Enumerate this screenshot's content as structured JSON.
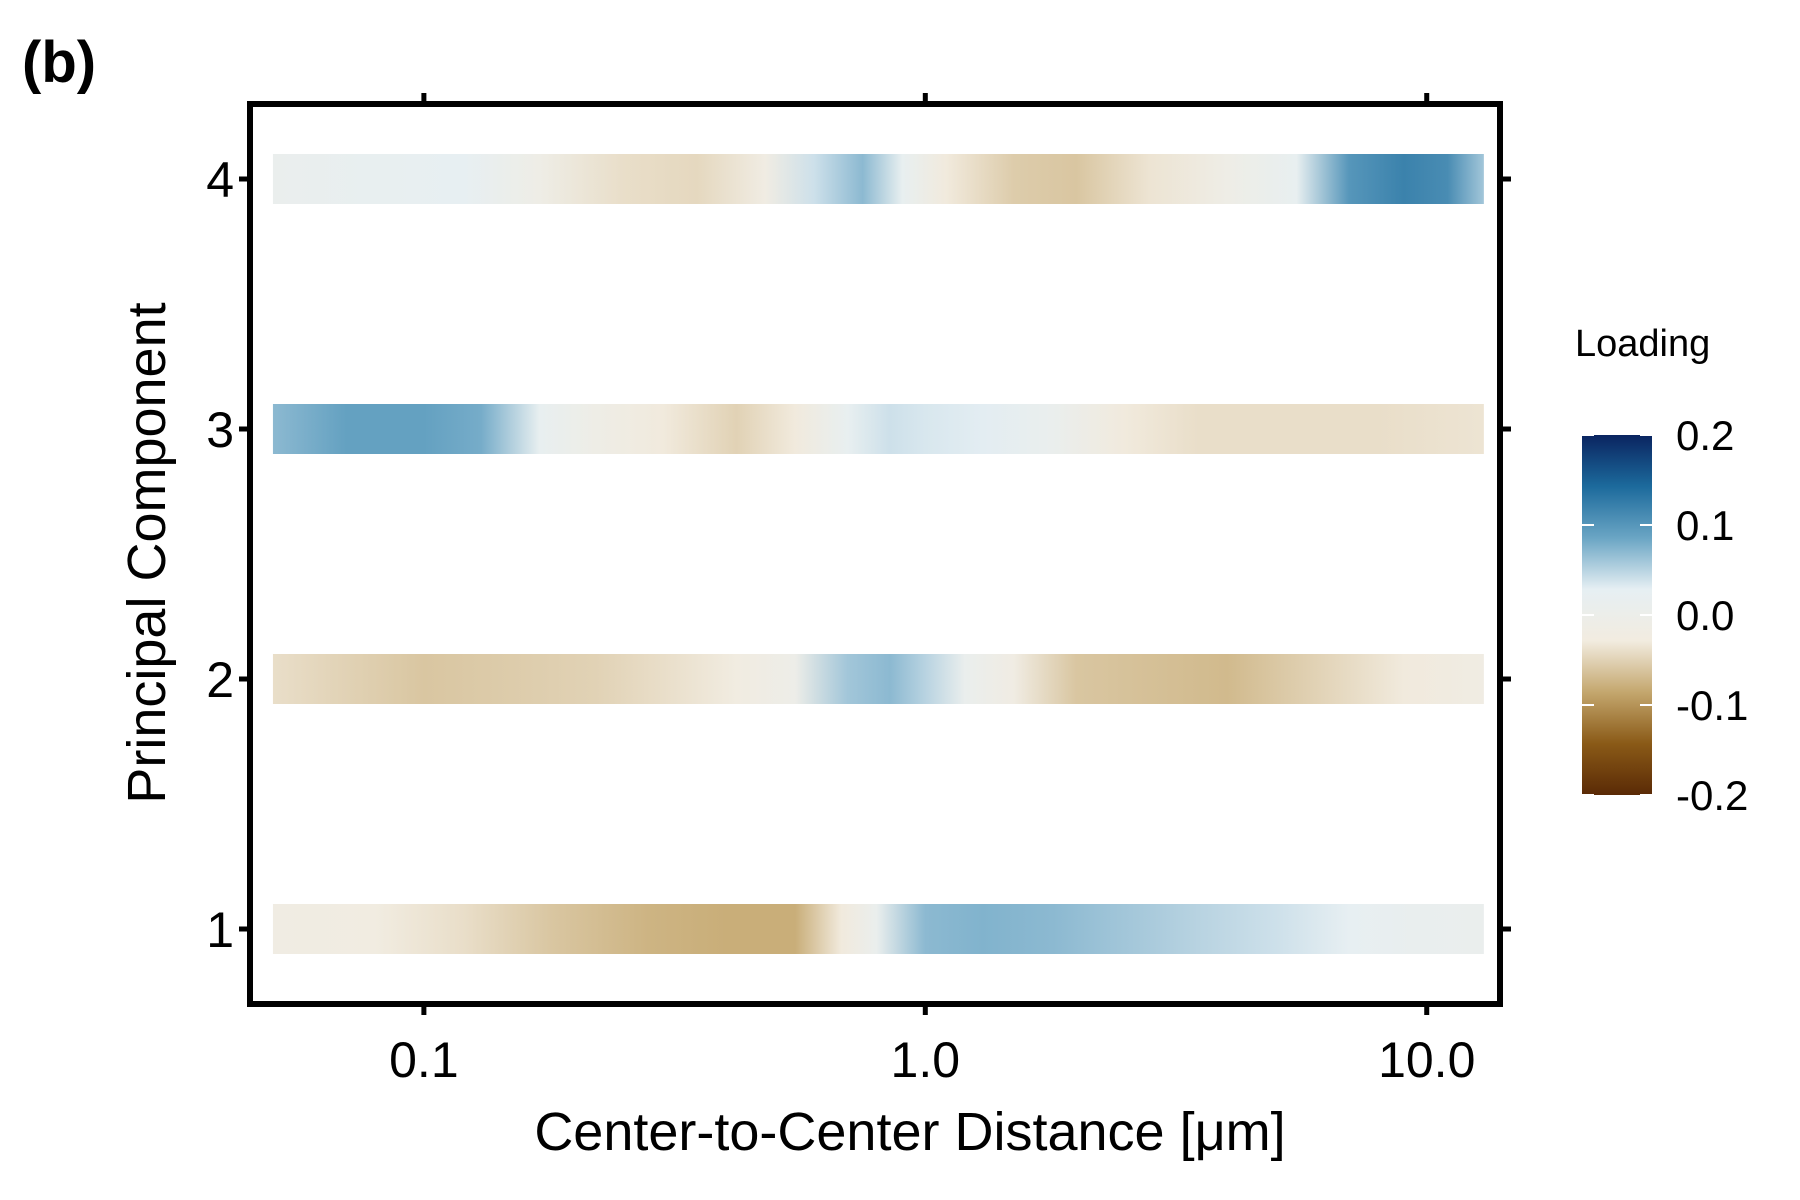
{
  "panel_label": "(b)",
  "chart_data": {
    "type": "heatmap",
    "xlabel": "Center-to-Center Distance [μm]",
    "ylabel": "Principal Component",
    "x_scale": "log10",
    "x_range": [
      0.045,
      14
    ],
    "x_ticks": [
      0.1,
      1.0,
      10.0
    ],
    "x_tick_labels": [
      "0.1",
      "1.0",
      "10.0"
    ],
    "y_ticks": [
      1,
      2,
      3,
      4
    ],
    "y_tick_labels": [
      "1",
      "2",
      "3",
      "4"
    ],
    "y_range": [
      0.7,
      4.3
    ],
    "grid": false,
    "legend": {
      "title": "Loading",
      "placement": "right",
      "limits": [
        -0.2,
        0.2
      ],
      "breaks": [
        0.2,
        0.1,
        0.0,
        -0.1,
        -0.2
      ],
      "break_labels": [
        "0.2",
        "0.1",
        "0.0",
        "-0.1",
        "-0.2"
      ],
      "colors": [
        "#5a2a06",
        "#8a5a17",
        "#c4a76e",
        "#f2ece0",
        "#e6eff3",
        "#6aa5c4",
        "#1c6a9c",
        "#0a2460"
      ]
    },
    "series": [
      {
        "component": 1,
        "x": [
          0.05,
          0.08,
          0.12,
          0.18,
          0.28,
          0.4,
          0.55,
          0.68,
          0.8,
          1.0,
          1.3,
          1.8,
          2.5,
          3.5,
          5.0,
          7.0,
          9.5,
          13.0
        ],
        "loading": [
          -0.02,
          -0.025,
          -0.04,
          -0.06,
          -0.075,
          -0.08,
          -0.08,
          -0.03,
          0.01,
          0.07,
          0.075,
          0.07,
          0.06,
          0.05,
          0.04,
          0.025,
          0.015,
          0.01
        ]
      },
      {
        "component": 2,
        "x": [
          0.05,
          0.07,
          0.1,
          0.15,
          0.22,
          0.3,
          0.42,
          0.55,
          0.7,
          0.85,
          1.0,
          1.2,
          1.5,
          2.0,
          2.8,
          4.0,
          6.0,
          9.0,
          13.0
        ],
        "loading": [
          -0.04,
          -0.05,
          -0.06,
          -0.055,
          -0.05,
          -0.04,
          -0.025,
          -0.005,
          0.06,
          0.07,
          0.05,
          0.01,
          -0.02,
          -0.06,
          -0.065,
          -0.07,
          -0.05,
          -0.03,
          -0.02
        ]
      },
      {
        "component": 3,
        "x": [
          0.05,
          0.07,
          0.1,
          0.13,
          0.17,
          0.22,
          0.3,
          0.42,
          0.55,
          0.7,
          0.85,
          1.0,
          1.3,
          1.8,
          2.5,
          3.5,
          5.0,
          8.0,
          13.0
        ],
        "loading": [
          0.07,
          0.09,
          0.09,
          0.08,
          0.02,
          -0.01,
          -0.03,
          -0.05,
          -0.03,
          0.02,
          0.04,
          0.035,
          0.03,
          0.01,
          -0.03,
          -0.04,
          -0.04,
          -0.04,
          -0.035
        ]
      },
      {
        "component": 4,
        "x": [
          0.05,
          0.08,
          0.12,
          0.17,
          0.25,
          0.35,
          0.48,
          0.6,
          0.75,
          0.9,
          1.1,
          1.5,
          2.0,
          2.8,
          4.0,
          5.5,
          7.0,
          9.0,
          11.0,
          13.0
        ],
        "loading": [
          0.01,
          0.02,
          0.025,
          -0.01,
          -0.04,
          -0.045,
          -0.02,
          0.04,
          0.07,
          0.02,
          -0.03,
          -0.055,
          -0.06,
          -0.035,
          -0.01,
          0.02,
          0.1,
          0.12,
          0.11,
          0.06
        ]
      }
    ]
  }
}
